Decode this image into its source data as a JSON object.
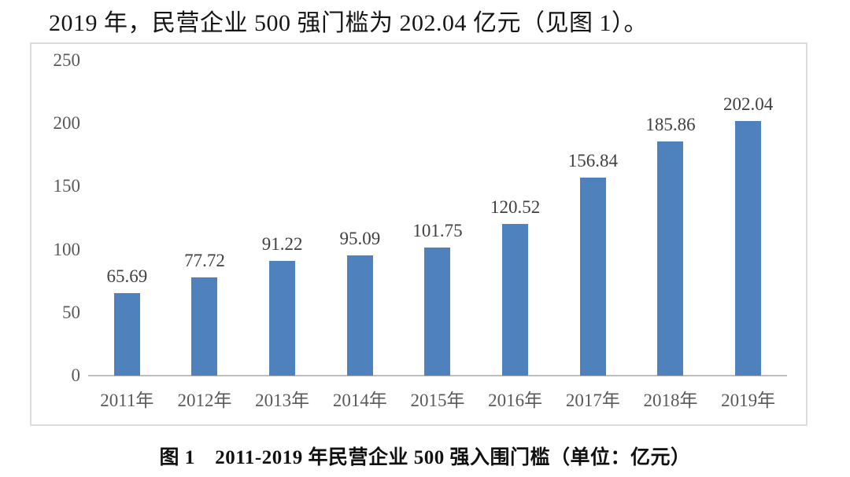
{
  "intro_text": "2019 年，民营企业 500 强门槛为 202.04 亿元（见图 1）。",
  "caption": "图 1　2011-2019 年民营企业 500 强入围门槛（单位：亿元）",
  "chart_data": {
    "type": "bar",
    "title": "",
    "xlabel": "",
    "ylabel": "",
    "categories": [
      "2011年",
      "2012年",
      "2013年",
      "2014年",
      "2015年",
      "2016年",
      "2017年",
      "2018年",
      "2019年"
    ],
    "values": [
      65.69,
      77.72,
      91.22,
      95.09,
      101.75,
      120.52,
      156.84,
      185.86,
      202.04
    ],
    "value_labels": [
      "65.69",
      "77.72",
      "91.22",
      "95.09",
      "101.75",
      "120.52",
      "156.84",
      "185.86",
      "202.04"
    ],
    "ylim": [
      0,
      250
    ],
    "yticks": [
      0,
      50,
      100,
      150,
      200,
      250
    ],
    "grid": false,
    "legend": false,
    "colors": {
      "bar": "#4f81bd",
      "axis_line": "#bfbfbf",
      "value_label": "#3f3f3f",
      "tick_label": "#595959",
      "frame_border": "#dcdcdc"
    }
  }
}
